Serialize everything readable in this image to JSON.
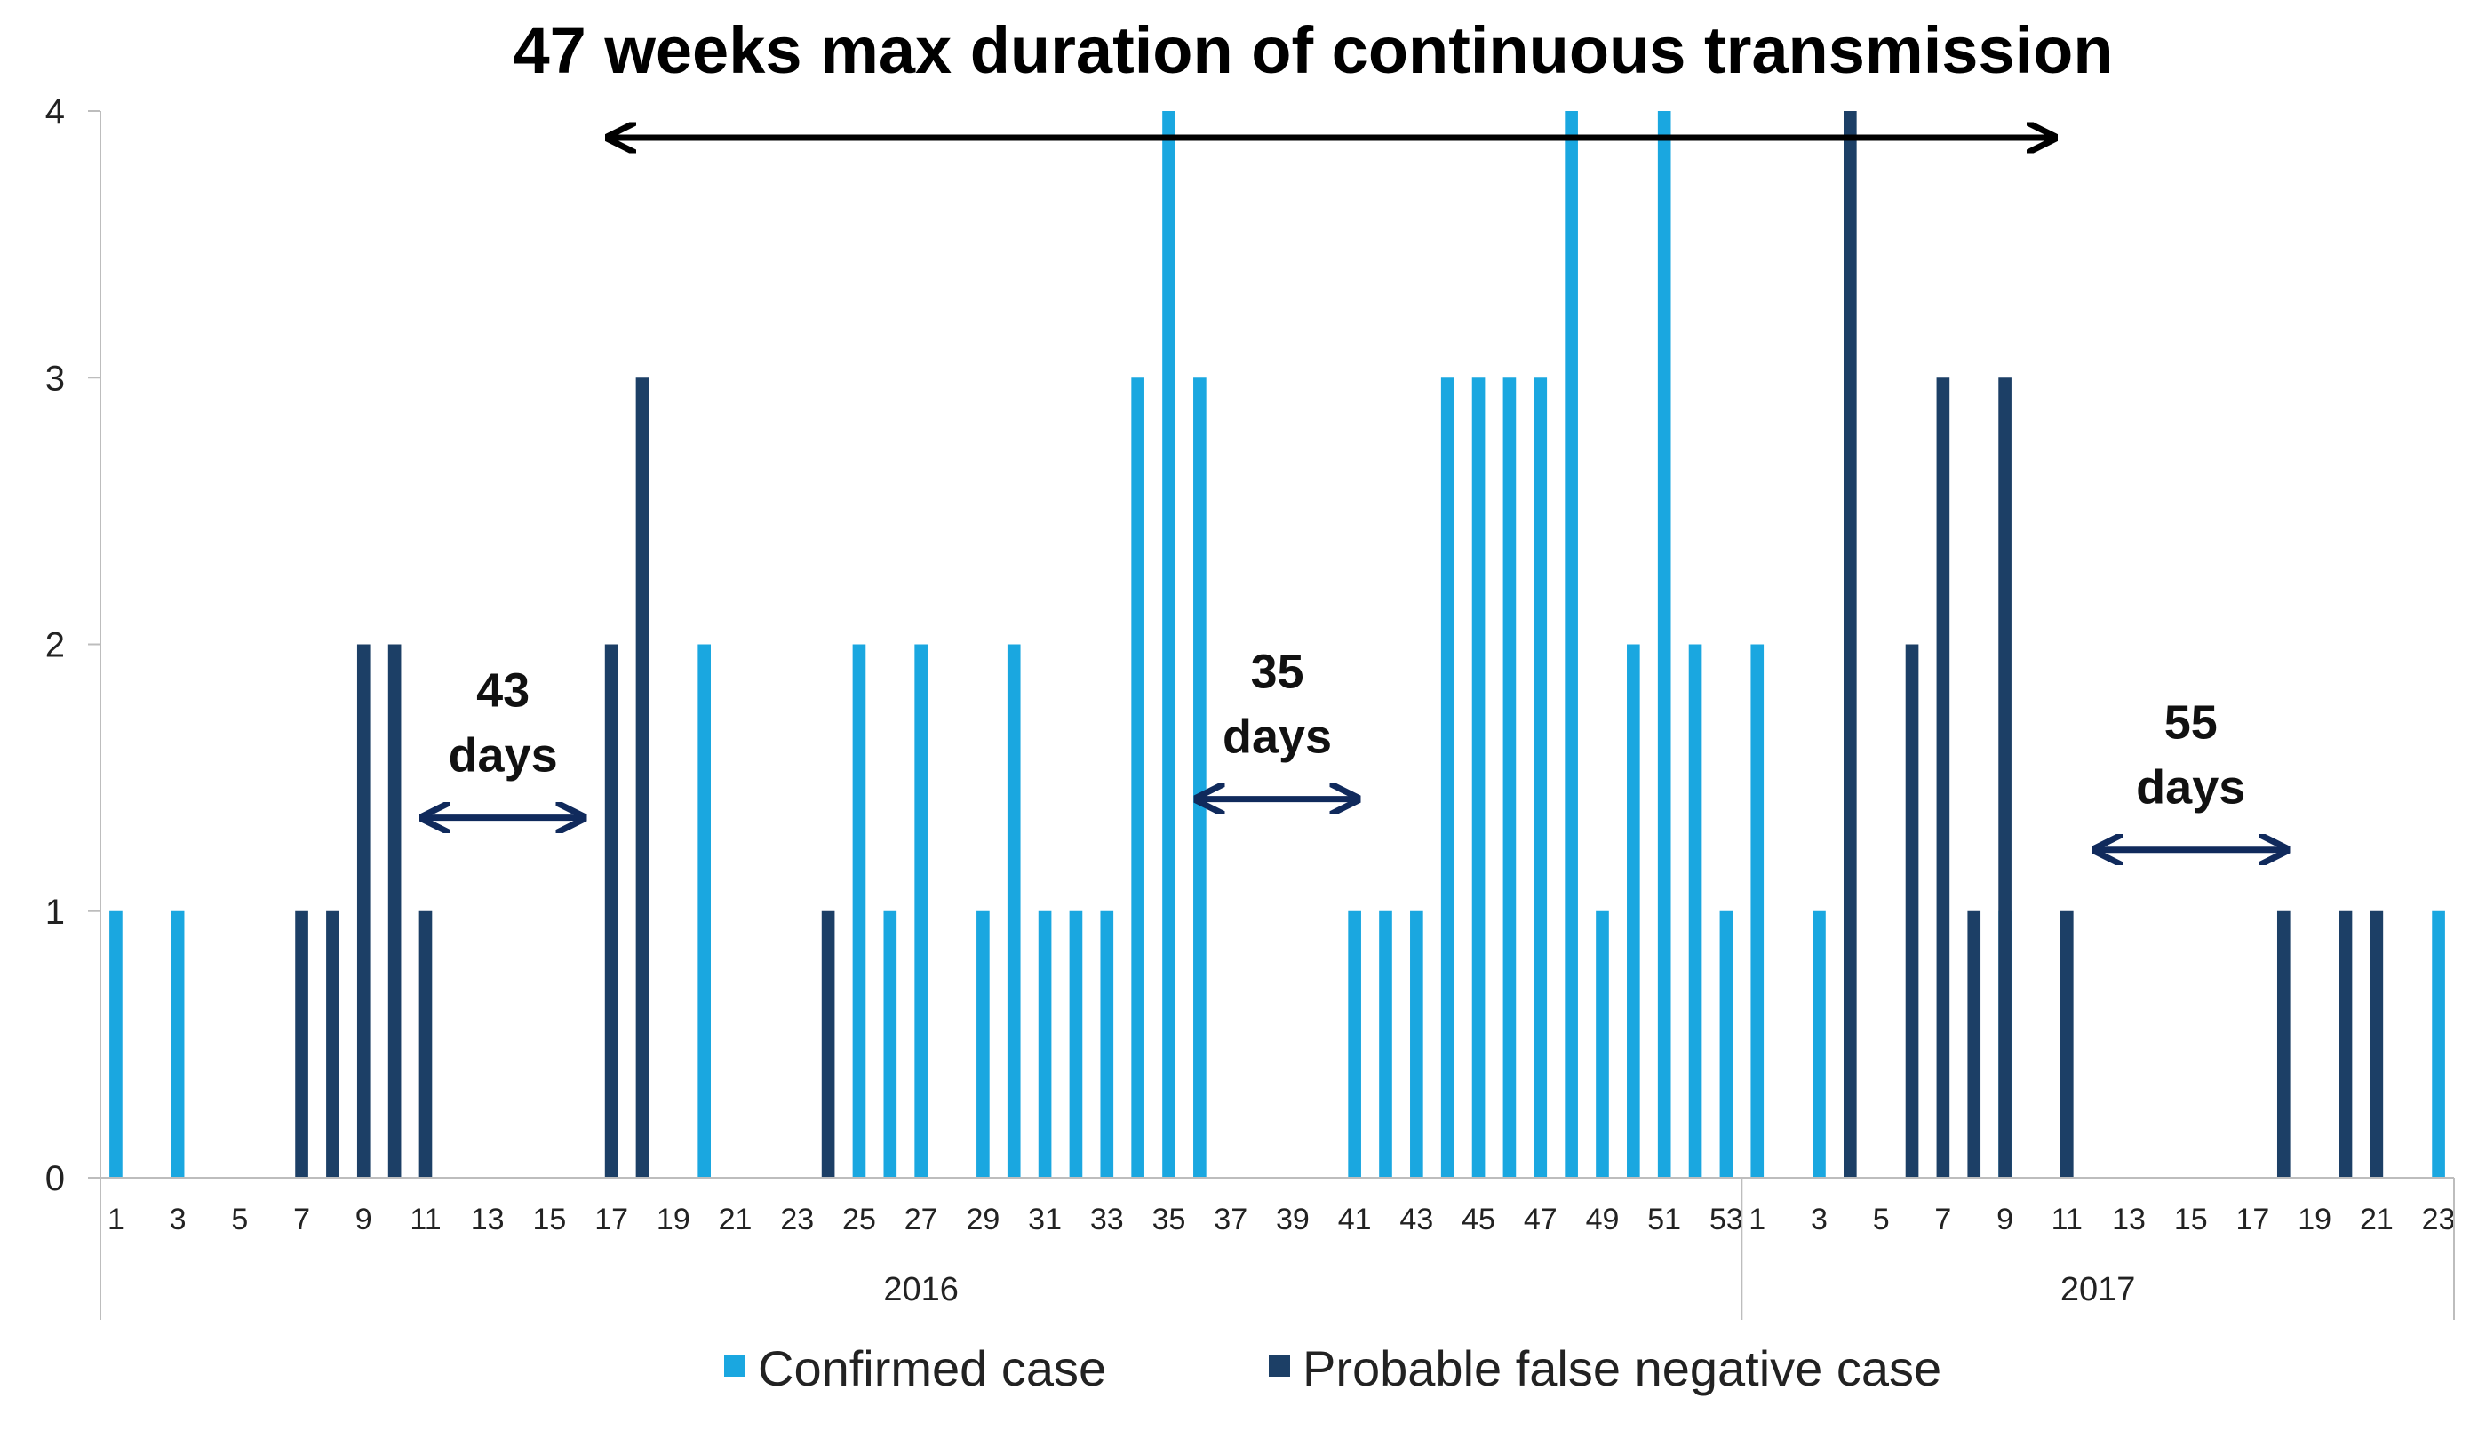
{
  "chart_data": {
    "type": "bar",
    "title": "47 weeks max duration of continuous transmission",
    "xlabel": "",
    "ylabel": "",
    "ylim": [
      0,
      4
    ],
    "yticks": [
      "0",
      "1",
      "2",
      "3",
      "4"
    ],
    "categories": [
      "1",
      "2",
      "3",
      "4",
      "5",
      "6",
      "7",
      "8",
      "9",
      "10",
      "11",
      "12",
      "13",
      "14",
      "15",
      "16",
      "17",
      "18",
      "19",
      "20",
      "21",
      "22",
      "23",
      "24",
      "25",
      "26",
      "27",
      "28",
      "29",
      "30",
      "31",
      "32",
      "33",
      "34",
      "35",
      "36",
      "37",
      "38",
      "39",
      "40",
      "41",
      "42",
      "43",
      "44",
      "45",
      "46",
      "47",
      "48",
      "49",
      "50",
      "51",
      "52",
      "53",
      "1",
      "2",
      "3",
      "4",
      "5",
      "6",
      "7",
      "8",
      "9",
      "10",
      "11",
      "12",
      "13",
      "14",
      "15",
      "16",
      "17",
      "18",
      "19",
      "20",
      "21",
      "22",
      "23"
    ],
    "groups": [
      {
        "label": "2016",
        "start": 0,
        "count": 53
      },
      {
        "label": "2017",
        "start": 53,
        "count": 23
      }
    ],
    "series": [
      {
        "name": "Confirmed case",
        "color": "#1aa7e0",
        "values": [
          1,
          0,
          1,
          0,
          0,
          0,
          0,
          0,
          0,
          0,
          0,
          0,
          0,
          0,
          0,
          0,
          0,
          0,
          0,
          2,
          0,
          0,
          0,
          0,
          2,
          1,
          2,
          0,
          1,
          2,
          1,
          1,
          1,
          3,
          4,
          3,
          0,
          0,
          0,
          0,
          1,
          1,
          1,
          3,
          3,
          3,
          3,
          4,
          1,
          2,
          4,
          2,
          1,
          2,
          0,
          1,
          0,
          0,
          0,
          0,
          0,
          1,
          0,
          0,
          0,
          0,
          0,
          0,
          0,
          0,
          0,
          0,
          0,
          0,
          0,
          1
        ]
      },
      {
        "name": "Probable false negative case",
        "color": "#1c3f66",
        "values": [
          0,
          0,
          0,
          0,
          0,
          0,
          1,
          1,
          2,
          2,
          1,
          0,
          0,
          0,
          0,
          0,
          2,
          3,
          0,
          0,
          0,
          0,
          0,
          1,
          0,
          0,
          0,
          0,
          0,
          0,
          0,
          0,
          0,
          0,
          0,
          0,
          0,
          0,
          0,
          0,
          0,
          0,
          0,
          0,
          0,
          0,
          0,
          0,
          0,
          0,
          0,
          0,
          0,
          0,
          0,
          0,
          4,
          0,
          2,
          3,
          1,
          3,
          0,
          1,
          0,
          0,
          0,
          0,
          0,
          0,
          1,
          0,
          1,
          1,
          0,
          0
        ]
      }
    ],
    "annotations": [
      {
        "id": "gap1",
        "line1": "43",
        "line2": "days",
        "from": 10.5,
        "to": 15.5,
        "y": 1.35
      },
      {
        "id": "gap2",
        "line1": "35",
        "line2": "days",
        "from": 35.5,
        "to": 40.5,
        "y": 1.42
      },
      {
        "id": "gap3",
        "line1": "55",
        "line2": "days",
        "from": 64.5,
        "to": 70.5,
        "y": 1.23
      }
    ],
    "span_arrow": {
      "from": 16.5,
      "to": 63.0,
      "y": 3.9
    },
    "legend_position": "bottom-center"
  }
}
